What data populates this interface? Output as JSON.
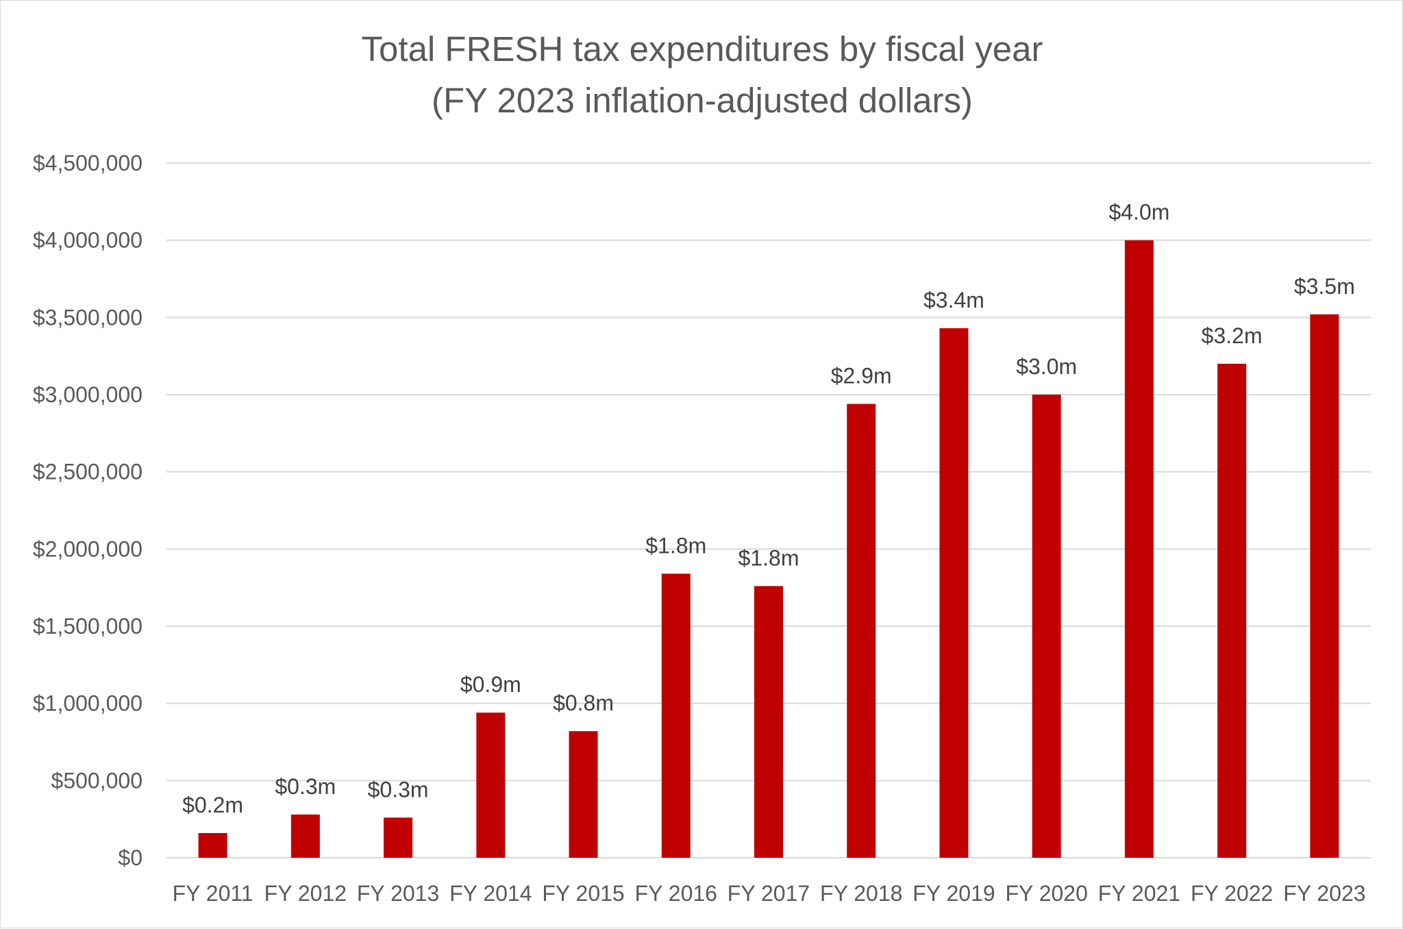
{
  "chart_data": {
    "type": "bar",
    "title": "Total FRESH tax expenditures by fiscal year",
    "subtitle": "(FY 2023 inflation-adjusted dollars)",
    "xlabel": "",
    "ylabel": "",
    "categories": [
      "FY 2011",
      "FY 2012",
      "FY 2013",
      "FY 2014",
      "FY 2015",
      "FY 2016",
      "FY 2017",
      "FY 2018",
      "FY 2019",
      "FY 2020",
      "FY 2021",
      "FY 2022",
      "FY 2023"
    ],
    "values": [
      160000,
      280000,
      260000,
      940000,
      820000,
      1840000,
      1760000,
      2940000,
      3430000,
      3000000,
      4000000,
      3200000,
      3520000
    ],
    "data_labels": [
      "$0.2m",
      "$0.3m",
      "$0.3m",
      "$0.9m",
      "$0.8m",
      "$1.8m",
      "$1.8m",
      "$2.9m",
      "$3.4m",
      "$3.0m",
      "$4.0m",
      "$3.2m",
      "$3.5m"
    ],
    "ylim": [
      0,
      4500000
    ],
    "yticks": [
      0,
      500000,
      1000000,
      1500000,
      2000000,
      2500000,
      3000000,
      3500000,
      4000000,
      4500000
    ],
    "ytick_labels": [
      "$0",
      "$500,000",
      "$1,000,000",
      "$1,500,000",
      "$2,000,000",
      "$2,500,000",
      "$3,000,000",
      "$3,500,000",
      "$4,000,000",
      "$4,500,000"
    ],
    "grid": true,
    "legend": "none",
    "colors": {
      "bar": "#c00000",
      "grid": "#d9d9d9",
      "text": "#595959",
      "label": "#404040"
    }
  }
}
